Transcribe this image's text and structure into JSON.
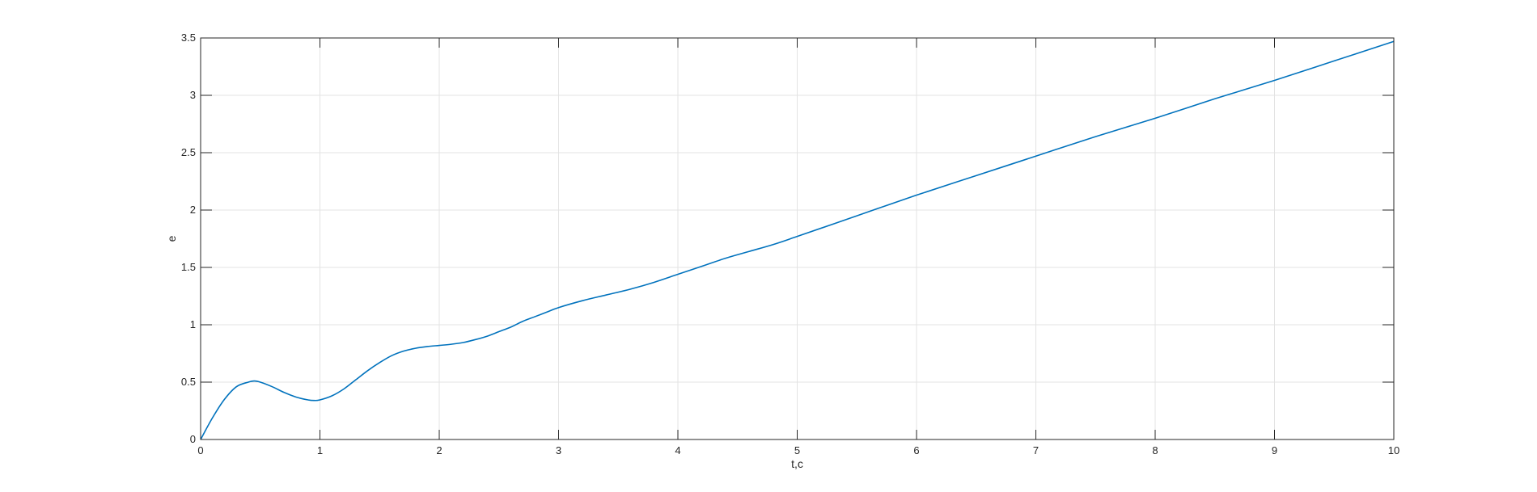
{
  "chart_data": {
    "type": "line",
    "title": "",
    "xlabel": "t,c",
    "ylabel": "e",
    "xlim": [
      0,
      10
    ],
    "ylim": [
      0,
      3.5
    ],
    "grid": true,
    "box": true,
    "x_ticks": [
      "0",
      "1",
      "2",
      "3",
      "4",
      "5",
      "6",
      "7",
      "8",
      "9",
      "10"
    ],
    "y_ticks": [
      "0",
      "0.5",
      "1",
      "1.5",
      "2",
      "2.5",
      "3",
      "3.5"
    ],
    "colors": {
      "line": "#0072bd",
      "axes": "#262626",
      "grid": "#e3e3e3"
    },
    "series": [
      {
        "x": [
          0,
          0.1,
          0.2,
          0.3,
          0.4,
          0.45,
          0.5,
          0.6,
          0.7,
          0.8,
          0.9,
          0.95,
          1.0,
          1.1,
          1.2,
          1.3,
          1.4,
          1.5,
          1.6,
          1.7,
          1.8,
          1.9,
          2.0,
          2.1,
          2.2,
          2.3,
          2.4,
          2.5,
          2.6,
          2.7,
          2.8,
          2.9,
          3.0,
          3.2,
          3.4,
          3.6,
          3.8,
          4.0,
          4.2,
          4.4,
          4.6,
          4.8,
          5.0,
          5.5,
          6.0,
          6.5,
          7.0,
          7.5,
          8.0,
          8.5,
          9.0,
          9.5,
          10.0
        ],
        "y": [
          0,
          0.19,
          0.35,
          0.46,
          0.5,
          0.51,
          0.5,
          0.46,
          0.41,
          0.37,
          0.345,
          0.34,
          0.345,
          0.38,
          0.44,
          0.52,
          0.6,
          0.67,
          0.73,
          0.77,
          0.795,
          0.81,
          0.82,
          0.83,
          0.845,
          0.87,
          0.9,
          0.94,
          0.98,
          1.03,
          1.07,
          1.11,
          1.15,
          1.21,
          1.26,
          1.31,
          1.37,
          1.44,
          1.51,
          1.58,
          1.64,
          1.7,
          1.77,
          1.95,
          2.13,
          2.3,
          2.47,
          2.64,
          2.8,
          2.97,
          3.13,
          3.3,
          3.47
        ]
      }
    ]
  }
}
